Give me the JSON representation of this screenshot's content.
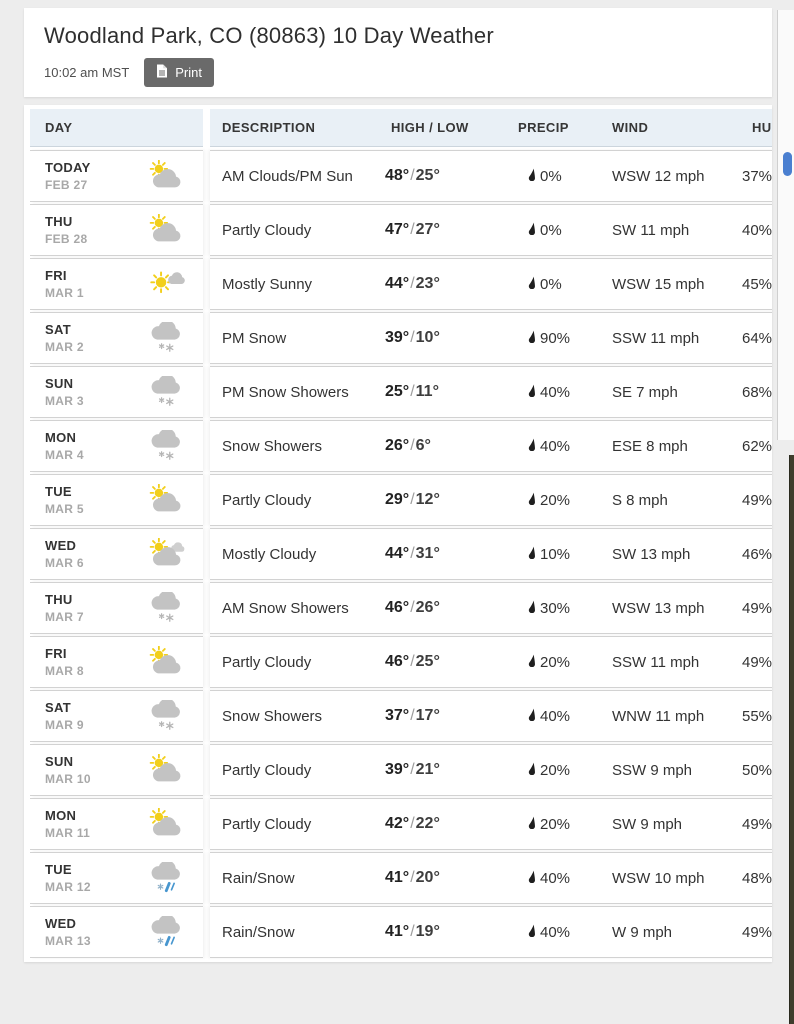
{
  "header": {
    "title": "Woodland Park, CO (80863) 10 Day Weather",
    "timestamp": "10:02 am MST",
    "print_label": "Print"
  },
  "table": {
    "columns": {
      "day": "DAY",
      "description": "DESCRIPTION",
      "high_low": "HIGH / LOW",
      "precip": "PRECIP",
      "wind": "WIND",
      "humidity": "HUMIDITY"
    },
    "rows": [
      {
        "day": "TODAY",
        "date": "FEB 27",
        "icon": "partly-cloudy",
        "description": "AM Clouds/PM Sun",
        "high": "48°",
        "low": "25°",
        "precip": "0%",
        "wind": "WSW 12 mph",
        "humidity": "37%"
      },
      {
        "day": "THU",
        "date": "FEB 28",
        "icon": "partly-cloudy",
        "description": "Partly Cloudy",
        "high": "47°",
        "low": "27°",
        "precip": "0%",
        "wind": "SW 11 mph",
        "humidity": "40%"
      },
      {
        "day": "FRI",
        "date": "MAR 1",
        "icon": "mostly-sunny",
        "description": "Mostly Sunny",
        "high": "44°",
        "low": "23°",
        "precip": "0%",
        "wind": "WSW 15 mph",
        "humidity": "45%"
      },
      {
        "day": "SAT",
        "date": "MAR 2",
        "icon": "snow",
        "description": "PM Snow",
        "high": "39°",
        "low": "10°",
        "precip": "90%",
        "wind": "SSW 11 mph",
        "humidity": "64%"
      },
      {
        "day": "SUN",
        "date": "MAR 3",
        "icon": "snow",
        "description": "PM Snow Showers",
        "high": "25°",
        "low": "11°",
        "precip": "40%",
        "wind": "SE 7 mph",
        "humidity": "68%"
      },
      {
        "day": "MON",
        "date": "MAR 4",
        "icon": "snow",
        "description": "Snow Showers",
        "high": "26°",
        "low": "6°",
        "precip": "40%",
        "wind": "ESE 8 mph",
        "humidity": "62%"
      },
      {
        "day": "TUE",
        "date": "MAR 5",
        "icon": "partly-cloudy",
        "description": "Partly Cloudy",
        "high": "29°",
        "low": "12°",
        "precip": "20%",
        "wind": "S 8 mph",
        "humidity": "49%"
      },
      {
        "day": "WED",
        "date": "MAR 6",
        "icon": "mostly-cloudy",
        "description": "Mostly Cloudy",
        "high": "44°",
        "low": "31°",
        "precip": "10%",
        "wind": "SW 13 mph",
        "humidity": "46%"
      },
      {
        "day": "THU",
        "date": "MAR 7",
        "icon": "snow",
        "description": "AM Snow Showers",
        "high": "46°",
        "low": "26°",
        "precip": "30%",
        "wind": "WSW 13 mph",
        "humidity": "49%"
      },
      {
        "day": "FRI",
        "date": "MAR 8",
        "icon": "partly-cloudy",
        "description": "Partly Cloudy",
        "high": "46°",
        "low": "25°",
        "precip": "20%",
        "wind": "SSW 11 mph",
        "humidity": "49%"
      },
      {
        "day": "SAT",
        "date": "MAR 9",
        "icon": "snow",
        "description": "Snow Showers",
        "high": "37°",
        "low": "17°",
        "precip": "40%",
        "wind": "WNW 11 mph",
        "humidity": "55%"
      },
      {
        "day": "SUN",
        "date": "MAR 10",
        "icon": "partly-cloudy",
        "description": "Partly Cloudy",
        "high": "39°",
        "low": "21°",
        "precip": "20%",
        "wind": "SSW 9 mph",
        "humidity": "50%"
      },
      {
        "day": "MON",
        "date": "MAR 11",
        "icon": "partly-cloudy",
        "description": "Partly Cloudy",
        "high": "42°",
        "low": "22°",
        "precip": "20%",
        "wind": "SW 9 mph",
        "humidity": "49%"
      },
      {
        "day": "TUE",
        "date": "MAR 12",
        "icon": "rain-snow",
        "description": "Rain/Snow",
        "high": "41°",
        "low": "20°",
        "precip": "40%",
        "wind": "WSW 10 mph",
        "humidity": "48%"
      },
      {
        "day": "WED",
        "date": "MAR 13",
        "icon": "rain-snow",
        "description": "Rain/Snow",
        "high": "41°",
        "low": "19°",
        "precip": "40%",
        "wind": "W 9 mph",
        "humidity": "49%"
      }
    ]
  },
  "colors": {
    "table_header_bg": "#e9f0f6",
    "print_button_bg": "#6a6a6a",
    "sun_yellow": "#f2cf1b",
    "cloud_gray": "#c3c3c3",
    "precip_blue": "#4796cf",
    "page_bg": "#ededed"
  }
}
